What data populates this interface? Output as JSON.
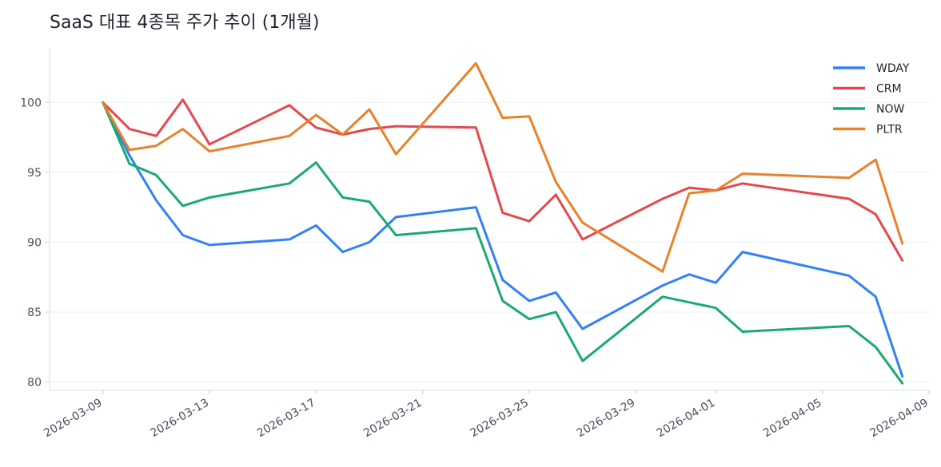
{
  "chart_data": {
    "type": "line",
    "title": "SaaS 대표 4종목 주가 추이 (1개월)",
    "xlabel": "",
    "ylabel": "",
    "ylim": [
      79.4,
      103.9
    ],
    "yticks": [
      80,
      85,
      90,
      95,
      100
    ],
    "xlim": [
      "2026-03-07",
      "2026-04-09"
    ],
    "xticks": [
      "2026-03-09",
      "2026-03-13",
      "2026-03-17",
      "2026-03-21",
      "2026-03-25",
      "2026-03-29",
      "2026-04-01",
      "2026-04-05",
      "2026-04-09"
    ],
    "grid": "horizontal",
    "legend_position": "top-right",
    "x": [
      "2026-03-09",
      "2026-03-10",
      "2026-03-11",
      "2026-03-12",
      "2026-03-13",
      "2026-03-16",
      "2026-03-17",
      "2026-03-18",
      "2026-03-19",
      "2026-03-20",
      "2026-03-23",
      "2026-03-24",
      "2026-03-25",
      "2026-03-26",
      "2026-03-27",
      "2026-03-30",
      "2026-03-31",
      "2026-04-01",
      "2026-04-02",
      "2026-04-06",
      "2026-04-07",
      "2026-04-08"
    ],
    "series": [
      {
        "name": "WDAY",
        "color": "#3182f6",
        "values": [
          100,
          96.2,
          93.0,
          90.5,
          89.8,
          90.2,
          91.2,
          89.3,
          90.0,
          91.8,
          92.5,
          87.3,
          85.8,
          86.4,
          83.8,
          86.9,
          87.7,
          87.1,
          89.3,
          87.6,
          86.1,
          80.4
        ]
      },
      {
        "name": "CRM",
        "color": "#e5484d",
        "values": [
          100,
          98.1,
          97.6,
          100.2,
          97.0,
          99.8,
          98.2,
          97.7,
          98.1,
          98.3,
          98.2,
          92.1,
          91.5,
          93.4,
          90.2,
          93.1,
          93.9,
          93.7,
          94.2,
          93.1,
          92.0,
          88.7
        ]
      },
      {
        "name": "NOW",
        "color": "#1aaa6f",
        "values": [
          100,
          95.6,
          94.8,
          92.6,
          93.2,
          94.2,
          95.7,
          93.2,
          92.9,
          90.5,
          91.0,
          85.8,
          84.5,
          85.0,
          81.5,
          86.1,
          85.7,
          85.3,
          83.6,
          84.0,
          82.5,
          79.9
        ]
      },
      {
        "name": "PLTR",
        "color": "#e8822a",
        "values": [
          100,
          96.6,
          96.9,
          98.1,
          96.5,
          97.6,
          99.1,
          97.7,
          99.5,
          96.3,
          102.8,
          98.9,
          99.0,
          94.3,
          91.4,
          87.9,
          93.5,
          93.7,
          94.9,
          94.6,
          95.9,
          89.9
        ]
      }
    ]
  }
}
